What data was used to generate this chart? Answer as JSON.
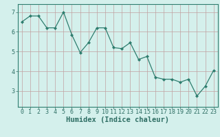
{
  "x": [
    0,
    1,
    2,
    3,
    4,
    5,
    6,
    7,
    8,
    9,
    10,
    11,
    12,
    13,
    14,
    15,
    16,
    17,
    18,
    19,
    20,
    21,
    22,
    23
  ],
  "y": [
    6.5,
    6.8,
    6.8,
    6.2,
    6.2,
    7.0,
    5.85,
    4.95,
    5.45,
    6.2,
    6.2,
    5.2,
    5.15,
    5.45,
    4.6,
    4.75,
    3.7,
    3.6,
    3.6,
    3.45,
    3.6,
    2.75,
    3.25,
    4.05
  ],
  "line_color": "#2e7d6e",
  "marker": "D",
  "marker_size": 2.0,
  "bg_color": "#d4f0ec",
  "grid_color": "#c0a0a0",
  "axis_color": "#2e7d6e",
  "xlabel": "Humidex (Indice chaleur)",
  "ylim": [
    2.2,
    7.4
  ],
  "xlim": [
    -0.5,
    23.5
  ],
  "yticks": [
    3,
    4,
    5,
    6,
    7
  ],
  "xticks": [
    0,
    1,
    2,
    3,
    4,
    5,
    6,
    7,
    8,
    9,
    10,
    11,
    12,
    13,
    14,
    15,
    16,
    17,
    18,
    19,
    20,
    21,
    22,
    23
  ],
  "xlabel_fontsize": 7.5,
  "tick_fontsize": 6.0,
  "tick_color": "#2e6e64"
}
